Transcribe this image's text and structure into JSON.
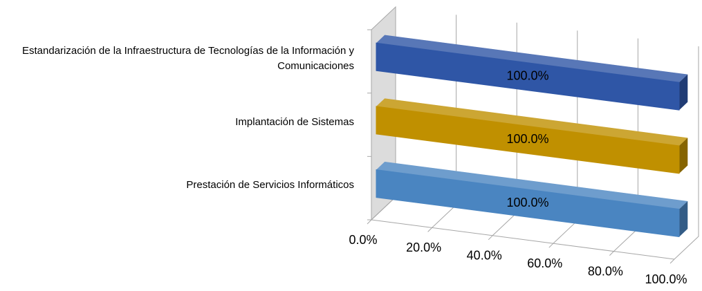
{
  "chart_data": {
    "type": "bar3d",
    "categories": [
      "Estandarización de la Infraestructura de Tecnologías de la Información y Comunicaciones",
      "Implantación de Sistemas",
      "Prestación de Servicios Informáticos"
    ],
    "values": [
      100,
      100,
      100
    ],
    "value_labels": [
      "100.0%",
      "100.0%",
      "100.0%"
    ],
    "colors": [
      "#2f56a6",
      "#c09000",
      "#4a85c1"
    ],
    "xlim": [
      0,
      100
    ],
    "xticks": [
      {
        "value": 0,
        "label": "0.0%"
      },
      {
        "value": 20,
        "label": "20.0%"
      },
      {
        "value": 40,
        "label": "40.0%"
      },
      {
        "value": 60,
        "label": "60.0%"
      },
      {
        "value": 80,
        "label": "80.0%"
      },
      {
        "value": 100,
        "label": "100.0%"
      }
    ],
    "grid": true
  }
}
